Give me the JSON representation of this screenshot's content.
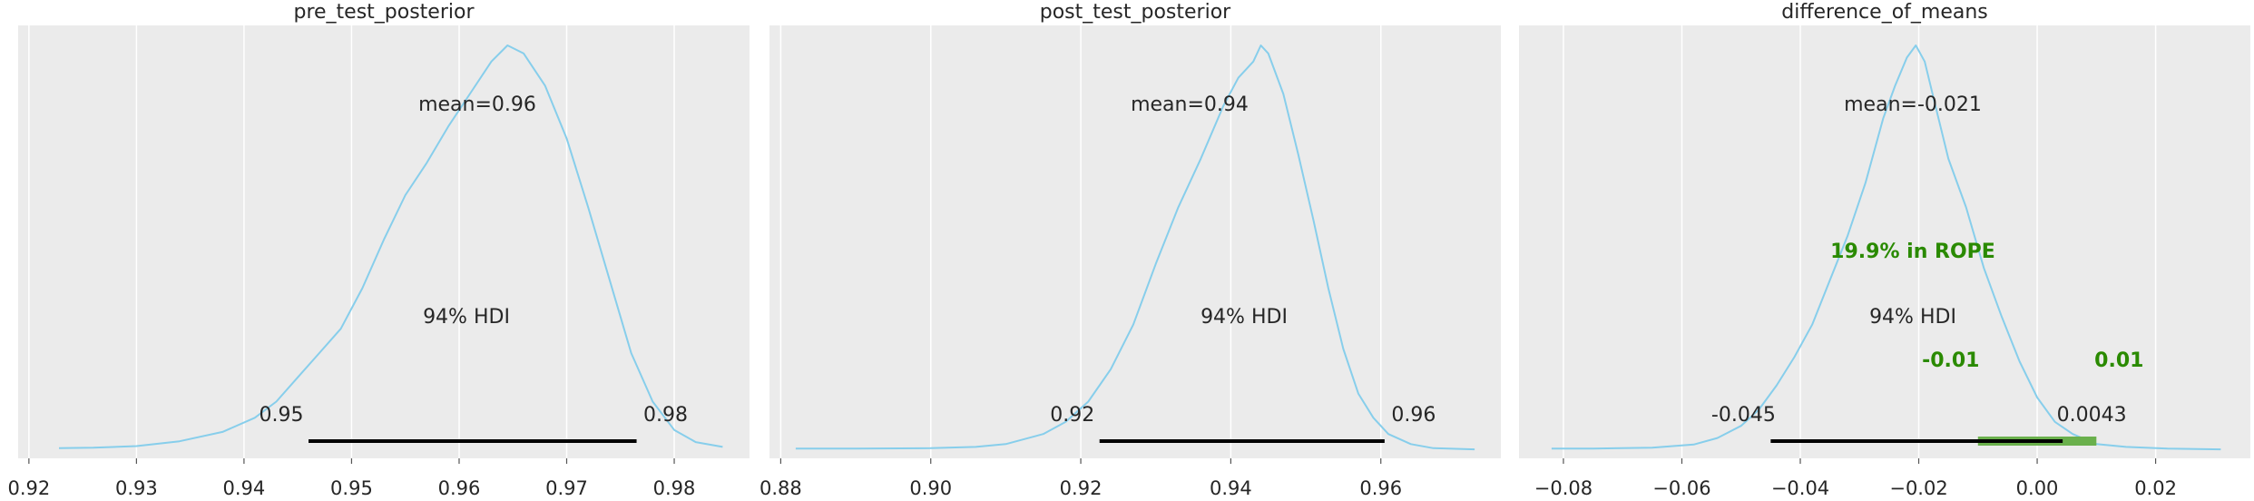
{
  "chart_data": [
    {
      "type": "area",
      "title": "pre_test_posterior",
      "xlim": [
        0.919,
        0.987
      ],
      "xticks": [
        0.92,
        0.93,
        0.94,
        0.95,
        0.96,
        0.97,
        0.98
      ],
      "xtick_labels": [
        "0.92",
        "0.93",
        "0.94",
        "0.95",
        "0.96",
        "0.97",
        "0.98"
      ],
      "grid": true,
      "mean_label": "mean=0.96",
      "hdi_label": "94% HDI",
      "hdi": [
        0.946,
        0.9765
      ],
      "hdi_low_label": "0.95",
      "hdi_high_label": "0.98",
      "density": {
        "x": [
          0.9228,
          0.926,
          0.93,
          0.934,
          0.938,
          0.941,
          0.943,
          0.945,
          0.947,
          0.949,
          0.951,
          0.953,
          0.955,
          0.957,
          0.959,
          0.961,
          0.963,
          0.9645,
          0.966,
          0.968,
          0.97,
          0.972,
          0.974,
          0.976,
          0.978,
          0.98,
          0.982,
          0.9845
        ],
        "y": [
          0.005,
          0.006,
          0.01,
          0.022,
          0.045,
          0.08,
          0.12,
          0.18,
          0.24,
          0.3,
          0.4,
          0.52,
          0.63,
          0.71,
          0.8,
          0.88,
          0.96,
          1.0,
          0.98,
          0.9,
          0.77,
          0.6,
          0.42,
          0.24,
          0.12,
          0.05,
          0.02,
          0.008
        ]
      }
    },
    {
      "type": "area",
      "title": "post_test_posterior",
      "xlim": [
        0.8785,
        0.976
      ],
      "xticks": [
        0.88,
        0.9,
        0.92,
        0.94,
        0.96
      ],
      "xtick_labels": [
        "0.88",
        "0.90",
        "0.92",
        "0.94",
        "0.96"
      ],
      "grid": true,
      "mean_label": "mean=0.94",
      "hdi_label": "94% HDI",
      "hdi": [
        0.9225,
        0.9605
      ],
      "hdi_low_label": "0.92",
      "hdi_high_label": "0.96",
      "density": {
        "x": [
          0.882,
          0.89,
          0.9,
          0.906,
          0.91,
          0.915,
          0.918,
          0.921,
          0.924,
          0.927,
          0.93,
          0.933,
          0.936,
          0.939,
          0.941,
          0.943,
          0.944,
          0.945,
          0.947,
          0.949,
          0.951,
          0.953,
          0.955,
          0.957,
          0.959,
          0.961,
          0.964,
          0.967,
          0.9725
        ],
        "y": [
          0.004,
          0.004,
          0.005,
          0.008,
          0.015,
          0.04,
          0.07,
          0.12,
          0.2,
          0.31,
          0.46,
          0.6,
          0.72,
          0.85,
          0.92,
          0.96,
          1.0,
          0.98,
          0.88,
          0.73,
          0.57,
          0.4,
          0.25,
          0.14,
          0.08,
          0.04,
          0.015,
          0.005,
          0.002
        ]
      }
    },
    {
      "type": "area",
      "title": "difference_of_means",
      "xlim": [
        -0.0875,
        0.036
      ],
      "xticks": [
        -0.08,
        -0.06,
        -0.04,
        -0.02,
        0.0,
        0.02
      ],
      "xtick_labels": [
        "−0.08",
        "−0.06",
        "−0.04",
        "−0.02",
        "0.00",
        "0.02"
      ],
      "grid": true,
      "mean_label": "mean=-0.021",
      "hdi_label": "94% HDI",
      "hdi": [
        -0.045,
        0.0043
      ],
      "hdi_low_label": "-0.045",
      "hdi_high_label": "0.0043",
      "rope": [
        -0.01,
        0.01
      ],
      "rope_label": "19.9% in ROPE",
      "rope_low_label": "-0.01",
      "rope_high_label": "0.01",
      "density": {
        "x": [
          -0.082,
          -0.075,
          -0.065,
          -0.058,
          -0.054,
          -0.05,
          -0.047,
          -0.044,
          -0.041,
          -0.038,
          -0.035,
          -0.032,
          -0.029,
          -0.026,
          -0.024,
          -0.022,
          -0.0205,
          -0.019,
          -0.017,
          -0.015,
          -0.012,
          -0.009,
          -0.006,
          -0.003,
          0.0,
          0.003,
          0.006,
          0.01,
          0.015,
          0.022,
          0.031
        ],
        "y": [
          0.004,
          0.004,
          0.006,
          0.014,
          0.03,
          0.06,
          0.1,
          0.16,
          0.23,
          0.31,
          0.42,
          0.53,
          0.66,
          0.82,
          0.9,
          0.97,
          1.0,
          0.96,
          0.84,
          0.72,
          0.6,
          0.45,
          0.33,
          0.22,
          0.13,
          0.07,
          0.04,
          0.015,
          0.008,
          0.004,
          0.002
        ]
      }
    }
  ]
}
